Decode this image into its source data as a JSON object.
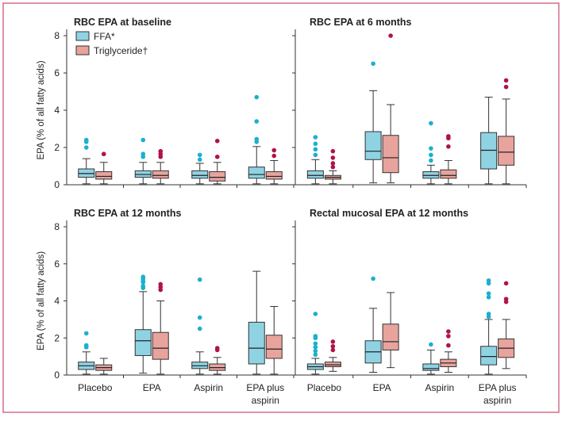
{
  "colors": {
    "frame": "#c94b6b",
    "ffa_fill": "#8fd3e3",
    "tg_fill": "#e8a39d",
    "ffa_outlier": "#1ab0cf",
    "tg_outlier": "#b0124a",
    "axis": "#333333"
  },
  "chart_data": {
    "type": "box",
    "panel_grid": "2x2",
    "ylabel": "EPA (% of all fatty acids)",
    "ylim": [
      0,
      8
    ],
    "yticks": [
      "0",
      "2",
      "4",
      "6",
      "8"
    ],
    "categories": [
      "Placebo",
      "EPA",
      "Aspirin",
      "EPA plus aspirin"
    ],
    "legend": {
      "placement": "top-left of first panel",
      "entries": [
        {
          "key": "ffa",
          "label": "FFA*"
        },
        {
          "key": "tg",
          "label": "Triglyceride†"
        }
      ]
    },
    "panels": [
      {
        "title": "RBC EPA at baseline",
        "series": {
          "ffa": [
            {
              "whislo": 0.05,
              "q1": 0.4,
              "med": 0.6,
              "q3": 0.85,
              "whishi": 1.4,
              "fliers": [
                2.0,
                2.3,
                2.4
              ]
            },
            {
              "whislo": 0.05,
              "q1": 0.4,
              "med": 0.55,
              "q3": 0.75,
              "whishi": 1.2,
              "fliers": [
                1.5,
                1.65,
                2.4
              ]
            },
            {
              "whislo": 0.05,
              "q1": 0.35,
              "med": 0.5,
              "q3": 0.75,
              "whishi": 1.15,
              "fliers": [
                1.35,
                1.6
              ]
            },
            {
              "whislo": 0.05,
              "q1": 0.35,
              "med": 0.55,
              "q3": 0.95,
              "whishi": 2.05,
              "fliers": [
                2.3,
                2.45,
                3.4,
                4.7
              ]
            }
          ],
          "tg": [
            {
              "whislo": 0.05,
              "q1": 0.3,
              "med": 0.45,
              "q3": 0.7,
              "whishi": 1.2,
              "fliers": [
                1.65
              ]
            },
            {
              "whislo": 0.05,
              "q1": 0.35,
              "med": 0.5,
              "q3": 0.75,
              "whishi": 1.2,
              "fliers": [
                1.5,
                1.65,
                1.8
              ]
            },
            {
              "whislo": 0.05,
              "q1": 0.2,
              "med": 0.4,
              "q3": 0.7,
              "whishi": 1.2,
              "fliers": [
                1.5,
                2.35
              ]
            },
            {
              "whislo": 0.05,
              "q1": 0.3,
              "med": 0.45,
              "q3": 0.7,
              "whishi": 1.3,
              "fliers": [
                1.55,
                1.85
              ]
            }
          ]
        }
      },
      {
        "title": "RBC EPA at 6 months",
        "series": {
          "ffa": [
            {
              "whislo": 0.05,
              "q1": 0.35,
              "med": 0.5,
              "q3": 0.75,
              "whishi": 1.35,
              "fliers": [
                1.6,
                1.9,
                2.2,
                2.55
              ]
            },
            {
              "whislo": 0.1,
              "q1": 1.35,
              "med": 1.8,
              "q3": 2.85,
              "whishi": 5.05,
              "fliers": [
                6.5
              ]
            },
            {
              "whislo": 0.05,
              "q1": 0.35,
              "med": 0.5,
              "q3": 0.7,
              "whishi": 1.05,
              "fliers": [
                1.3,
                1.6,
                1.95,
                3.3
              ]
            },
            {
              "whislo": 0.05,
              "q1": 0.85,
              "med": 1.85,
              "q3": 2.8,
              "whishi": 4.7,
              "fliers": []
            }
          ],
          "tg": [
            {
              "whislo": 0.05,
              "q1": 0.3,
              "med": 0.4,
              "q3": 0.5,
              "whishi": 0.75,
              "fliers": [
                0.95,
                1.15,
                1.45,
                1.8
              ]
            },
            {
              "whislo": 0.1,
              "q1": 0.65,
              "med": 1.45,
              "q3": 2.65,
              "whishi": 4.3,
              "fliers": [
                8.0
              ]
            },
            {
              "whislo": 0.05,
              "q1": 0.35,
              "med": 0.5,
              "q3": 0.8,
              "whishi": 1.3,
              "fliers": [
                2.05,
                2.5,
                2.6
              ]
            },
            {
              "whislo": 0.05,
              "q1": 1.05,
              "med": 1.75,
              "q3": 2.6,
              "whishi": 4.6,
              "fliers": [
                5.25,
                5.6
              ]
            }
          ]
        }
      },
      {
        "title": "RBC EPA at 12 months",
        "series": {
          "ffa": [
            {
              "whislo": 0.05,
              "q1": 0.3,
              "med": 0.5,
              "q3": 0.7,
              "whishi": 1.25,
              "fliers": [
                1.5,
                1.6,
                2.25
              ]
            },
            {
              "whislo": 0.1,
              "q1": 1.05,
              "med": 1.85,
              "q3": 2.45,
              "whishi": 4.5,
              "fliers": [
                4.7,
                4.8,
                5.0,
                5.1,
                5.2,
                5.3
              ]
            },
            {
              "whislo": 0.05,
              "q1": 0.35,
              "med": 0.5,
              "q3": 0.7,
              "whishi": 1.25,
              "fliers": [
                2.5,
                3.1,
                5.15
              ]
            },
            {
              "whislo": 0.05,
              "q1": 0.6,
              "med": 1.45,
              "q3": 2.85,
              "whishi": 5.6,
              "fliers": []
            }
          ],
          "tg": [
            {
              "whislo": 0.05,
              "q1": 0.25,
              "med": 0.4,
              "q3": 0.55,
              "whishi": 0.9,
              "fliers": []
            },
            {
              "whislo": 0.05,
              "q1": 0.85,
              "med": 1.45,
              "q3": 2.3,
              "whishi": 4.0,
              "fliers": [
                4.6,
                4.75,
                4.9
              ]
            },
            {
              "whislo": 0.05,
              "q1": 0.25,
              "med": 0.4,
              "q3": 0.6,
              "whishi": 0.95,
              "fliers": [
                1.35,
                1.45
              ]
            },
            {
              "whislo": 0.05,
              "q1": 0.9,
              "med": 1.4,
              "q3": 2.15,
              "whishi": 3.7,
              "fliers": []
            }
          ]
        }
      },
      {
        "title": "Rectal mucosal EPA at 12 months",
        "series": {
          "ffa": [
            {
              "whislo": 0.05,
              "q1": 0.3,
              "med": 0.45,
              "q3": 0.6,
              "whishi": 0.9,
              "fliers": [
                1.1,
                1.3,
                1.5,
                1.7,
                2.0,
                2.1,
                3.3
              ]
            },
            {
              "whislo": 0.15,
              "q1": 0.65,
              "med": 1.25,
              "q3": 1.85,
              "whishi": 3.6,
              "fliers": [
                5.2
              ]
            },
            {
              "whislo": 0.05,
              "q1": 0.25,
              "med": 0.35,
              "q3": 0.6,
              "whishi": 1.35,
              "fliers": [
                1.65
              ]
            },
            {
              "whislo": 0.05,
              "q1": 0.55,
              "med": 1.0,
              "q3": 1.55,
              "whishi": 3.0,
              "fliers": [
                3.15,
                3.3,
                4.2,
                4.4,
                4.95,
                5.1
              ]
            }
          ],
          "tg": [
            {
              "whislo": 0.2,
              "q1": 0.45,
              "med": 0.55,
              "q3": 0.7,
              "whishi": 0.95,
              "fliers": [
                1.35,
                1.55,
                1.8
              ]
            },
            {
              "whislo": 0.4,
              "q1": 1.35,
              "med": 1.8,
              "q3": 2.75,
              "whishi": 4.45,
              "fliers": []
            },
            {
              "whislo": 0.15,
              "q1": 0.45,
              "med": 0.65,
              "q3": 0.85,
              "whishi": 1.25,
              "fliers": [
                1.6,
                2.1,
                2.35
              ]
            },
            {
              "whislo": 0.35,
              "q1": 0.95,
              "med": 1.45,
              "q3": 1.95,
              "whishi": 3.0,
              "fliers": [
                3.95,
                4.1,
                4.95
              ]
            }
          ]
        }
      }
    ],
    "category_labels_bottom": [
      [
        "Placebo"
      ],
      [
        "EPA"
      ],
      [
        "Aspirin"
      ],
      [
        "EPA plus",
        "aspirin"
      ]
    ]
  }
}
